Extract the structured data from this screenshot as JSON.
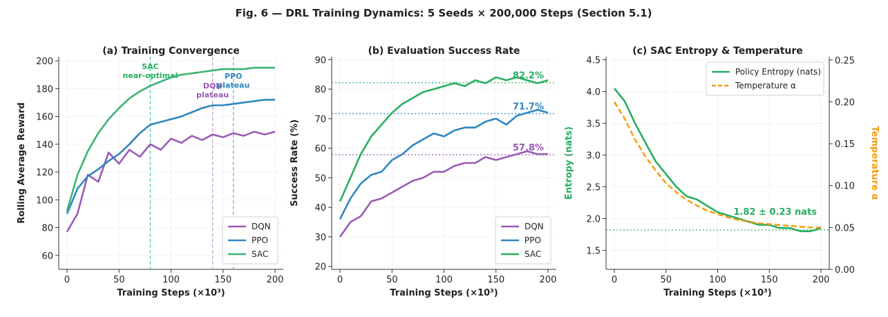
{
  "title": "Fig. 6 — DRL Training Dynamics: 5 Seeds × 200,000 Steps (Section 5.1)",
  "chart_data": [
    {
      "type": "line",
      "title": "(a) Training Convergence",
      "xlabel": "Training Steps (×10³)",
      "ylabel": "Rolling Average Reward",
      "x": [
        0,
        10,
        20,
        30,
        40,
        50,
        60,
        70,
        80,
        90,
        100,
        110,
        120,
        130,
        140,
        150,
        160,
        170,
        180,
        190,
        200
      ],
      "series": [
        {
          "name": "DQN",
          "color": "#9b59b6",
          "values": [
            77,
            90,
            118,
            113,
            134,
            126,
            136,
            131,
            140,
            136,
            144,
            141,
            146,
            143,
            147,
            145,
            148,
            146,
            149,
            147,
            149
          ]
        },
        {
          "name": "PPO",
          "color": "#2e86c1",
          "values": [
            90,
            108,
            117,
            122,
            128,
            133,
            140,
            148,
            154,
            156,
            158,
            160,
            163,
            166,
            168,
            168,
            169,
            170,
            171,
            172,
            172
          ]
        },
        {
          "name": "SAC",
          "color": "#3cb371",
          "values": [
            92,
            118,
            135,
            148,
            158,
            166,
            173,
            178,
            182,
            185,
            188,
            190,
            191,
            192,
            193,
            194,
            194,
            194,
            195,
            195,
            195
          ]
        }
      ],
      "vlines": [
        {
          "value": 80,
          "color": "#48c9b0",
          "text_color": "#27ae60",
          "label": [
            "SAC",
            "near-optimal"
          ]
        },
        {
          "value": 140,
          "color": "#c39bd3",
          "text_color": "#9b59b6",
          "label": [
            "DQN",
            "plateau"
          ]
        },
        {
          "value": 160,
          "color": "#5dade2",
          "text_color": "#2e86c1",
          "label": [
            "PPO",
            "plateau"
          ]
        }
      ],
      "xlim": [
        -8,
        208
      ],
      "ylim": [
        50,
        203
      ],
      "xticks": [
        0,
        50,
        100,
        150,
        200
      ],
      "yticks": [
        60,
        80,
        100,
        120,
        140,
        160,
        180,
        200
      ],
      "grid": true,
      "legend": "lower right"
    },
    {
      "type": "line",
      "title": "(b) Evaluation Success Rate",
      "xlabel": "Training Steps (×10³)",
      "ylabel": "Success Rate (%)",
      "x": [
        0,
        10,
        20,
        30,
        40,
        50,
        60,
        70,
        80,
        90,
        100,
        110,
        120,
        130,
        140,
        150,
        160,
        170,
        180,
        190,
        200
      ],
      "series": [
        {
          "name": "DQN",
          "color": "#9b59b6",
          "values": [
            30,
            35,
            37,
            42,
            43,
            45,
            47,
            49,
            50,
            52,
            52,
            54,
            55,
            55,
            57,
            56,
            57,
            58,
            59,
            58,
            58
          ]
        },
        {
          "name": "PPO",
          "color": "#2e86c1",
          "values": [
            36,
            43,
            48,
            51,
            52,
            56,
            58,
            61,
            63,
            65,
            64,
            66,
            67,
            67,
            69,
            70,
            68,
            71,
            72,
            73,
            72
          ]
        },
        {
          "name": "SAC",
          "color": "#27ae60",
          "values": [
            42,
            50,
            58,
            64,
            68,
            72,
            75,
            77,
            79,
            80,
            81,
            82,
            81,
            83,
            82,
            84,
            83,
            84,
            83,
            82,
            83
          ]
        }
      ],
      "hlines": [
        {
          "value": 82.2,
          "color": "#27ae60",
          "label": "82.2%"
        },
        {
          "value": 71.7,
          "color": "#2e86c1",
          "label": "71.7%"
        },
        {
          "value": 57.8,
          "color": "#9b59b6",
          "label": "57.8%"
        }
      ],
      "xlim": [
        -8,
        208
      ],
      "ylim": [
        19,
        91
      ],
      "xticks": [
        0,
        50,
        100,
        150,
        200
      ],
      "yticks": [
        20,
        30,
        40,
        50,
        60,
        70,
        80,
        90
      ],
      "grid": true,
      "legend": "lower right"
    },
    {
      "type": "line",
      "title": "(c) SAC Entropy & Temperature",
      "xlabel": "Training Steps (×10³)",
      "ylabel": "Entropy (nats)",
      "ylabel_color": "#27ae60",
      "y2label": "Temperature α",
      "y2label_color": "#f39c12",
      "x": [
        0,
        10,
        20,
        30,
        40,
        50,
        60,
        70,
        80,
        90,
        100,
        110,
        120,
        130,
        140,
        150,
        160,
        170,
        180,
        190,
        200
      ],
      "series": [
        {
          "name": "Policy Entropy (nats)",
          "color": "#27ae60",
          "values": [
            4.05,
            3.85,
            3.5,
            3.2,
            2.9,
            2.7,
            2.5,
            2.35,
            2.3,
            2.2,
            2.1,
            2.05,
            2.0,
            1.95,
            1.9,
            1.9,
            1.85,
            1.85,
            1.8,
            1.8,
            1.85
          ]
        },
        {
          "name": "Temperature α",
          "color": "#f39c12",
          "dashed": true,
          "axis": "y2",
          "values": [
            0.2,
            0.18,
            0.155,
            0.135,
            0.118,
            0.103,
            0.092,
            0.083,
            0.076,
            0.07,
            0.066,
            0.062,
            0.059,
            0.057,
            0.055,
            0.054,
            0.053,
            0.052,
            0.051,
            0.05,
            0.05
          ]
        }
      ],
      "hlines": [
        {
          "value": 1.82,
          "color": "#27ae60",
          "label": "1.82 ± 0.23 nats"
        }
      ],
      "xlim": [
        -8,
        208
      ],
      "ylim": [
        1.2,
        4.55
      ],
      "xticks": [
        0,
        50,
        100,
        150,
        200
      ],
      "yticks": [
        1.5,
        {
          "value": 2,
          "label": "2.0"
        },
        2.5,
        {
          "value": 3,
          "label": "3.0"
        },
        3.5,
        {
          "value": 4,
          "label": "4.0"
        },
        4.5
      ],
      "y2lim": [
        0,
        0.254
      ],
      "y2ticks": [
        {
          "value": 0,
          "label": "0.00"
        },
        0.05,
        {
          "value": 0.1,
          "label": "0.10"
        },
        0.15,
        {
          "value": 0.2,
          "label": "0.20"
        },
        0.25
      ],
      "grid": true,
      "legend": "upper right"
    }
  ]
}
